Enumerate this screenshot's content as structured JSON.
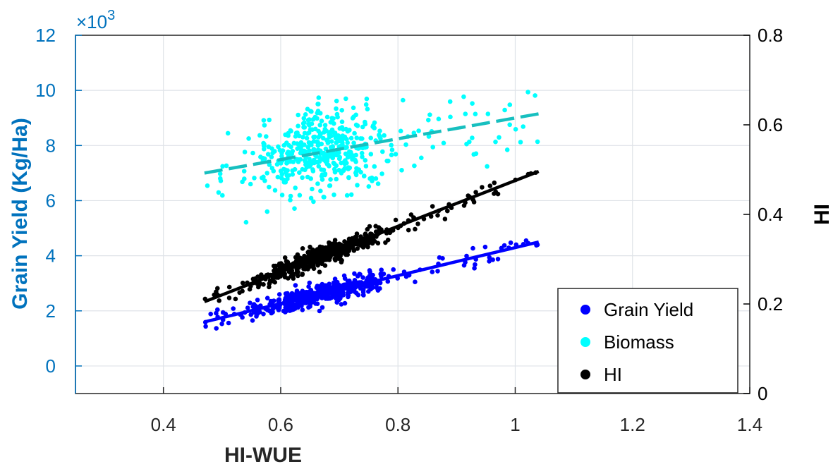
{
  "chart_data": {
    "type": "scatter",
    "title": "",
    "xlabel": "HI-WUE",
    "ylabel_left": "Grain Yield (Kg/Ha)",
    "ylabel_right": "HI",
    "left_axis_multiplier": "×10",
    "left_axis_exponent": "3",
    "xlim": [
      0.25,
      1.4
    ],
    "ylim_left": [
      -1,
      12
    ],
    "ylim_right": [
      0,
      0.8
    ],
    "x_ticks": [
      "0.4",
      "0.6",
      "0.8",
      "1",
      "1.2",
      "1.4"
    ],
    "y_left_ticks": [
      "0",
      "2",
      "4",
      "6",
      "8",
      "10",
      "12"
    ],
    "y_right_ticks": [
      "0",
      "0.2",
      "0.4",
      "0.6",
      "0.8"
    ],
    "grid": true,
    "legend_position": "bottom-right",
    "colors": {
      "left_axis": "#0072BD",
      "grain": "#0000ff",
      "biomass": "#00ffff",
      "biomass_trend": "#17bfbf",
      "hi": "#000000"
    },
    "series": [
      {
        "name": "Grain Yield",
        "axis": "left",
        "unit_scale": 1000,
        "trend": {
          "x": [
            0.47,
            1.04
          ],
          "y": [
            1.6,
            4.5
          ]
        }
      },
      {
        "name": "Biomass",
        "axis": "left",
        "unit_scale": 1000,
        "trend": {
          "x": [
            0.47,
            1.04
          ],
          "y": [
            7.0,
            9.15
          ]
        }
      },
      {
        "name": "HI",
        "axis": "right",
        "trend": {
          "x": [
            0.47,
            1.04
          ],
          "y": [
            0.205,
            0.496
          ]
        }
      }
    ]
  }
}
